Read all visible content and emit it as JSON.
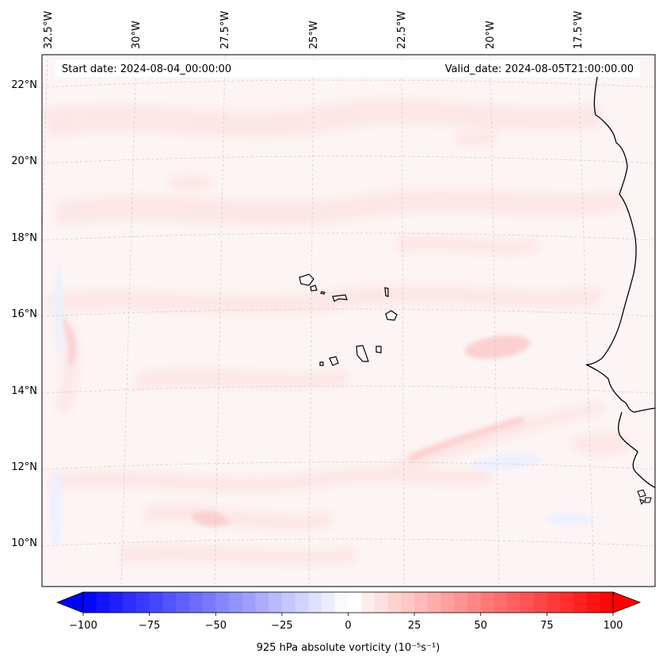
{
  "header": {
    "start_date": "Start date: 2024-08-04_00:00:00",
    "valid_date": "Valid_date: 2024-08-05T21:00:00.00"
  },
  "longitude_labels": [
    "32.5°W",
    "30°W",
    "27.5°W",
    "25°W",
    "22.5°W",
    "20°W",
    "17.5°W"
  ],
  "latitude_labels": [
    "22°N",
    "20°N",
    "18°N",
    "16°N",
    "14°N",
    "12°N",
    "10°N"
  ],
  "colorbar": {
    "ticks": [
      "−100",
      "−75",
      "−50",
      "−25",
      "0",
      "25",
      "50",
      "75",
      "100"
    ],
    "label": "925 hPa absolute vorticity (10⁻⁵s⁻¹)",
    "min_color": "#0000ff",
    "mid_color": "#ffffff",
    "max_color": "#ff0000"
  },
  "colors": {
    "field_background": "#fdf5f5",
    "positive_weak": "#fde6e6",
    "positive_moderate": "#fbd0d0",
    "negative_weak": "#eef0fd",
    "coastline": "#000000",
    "gridline": "#c8c8c8"
  }
}
